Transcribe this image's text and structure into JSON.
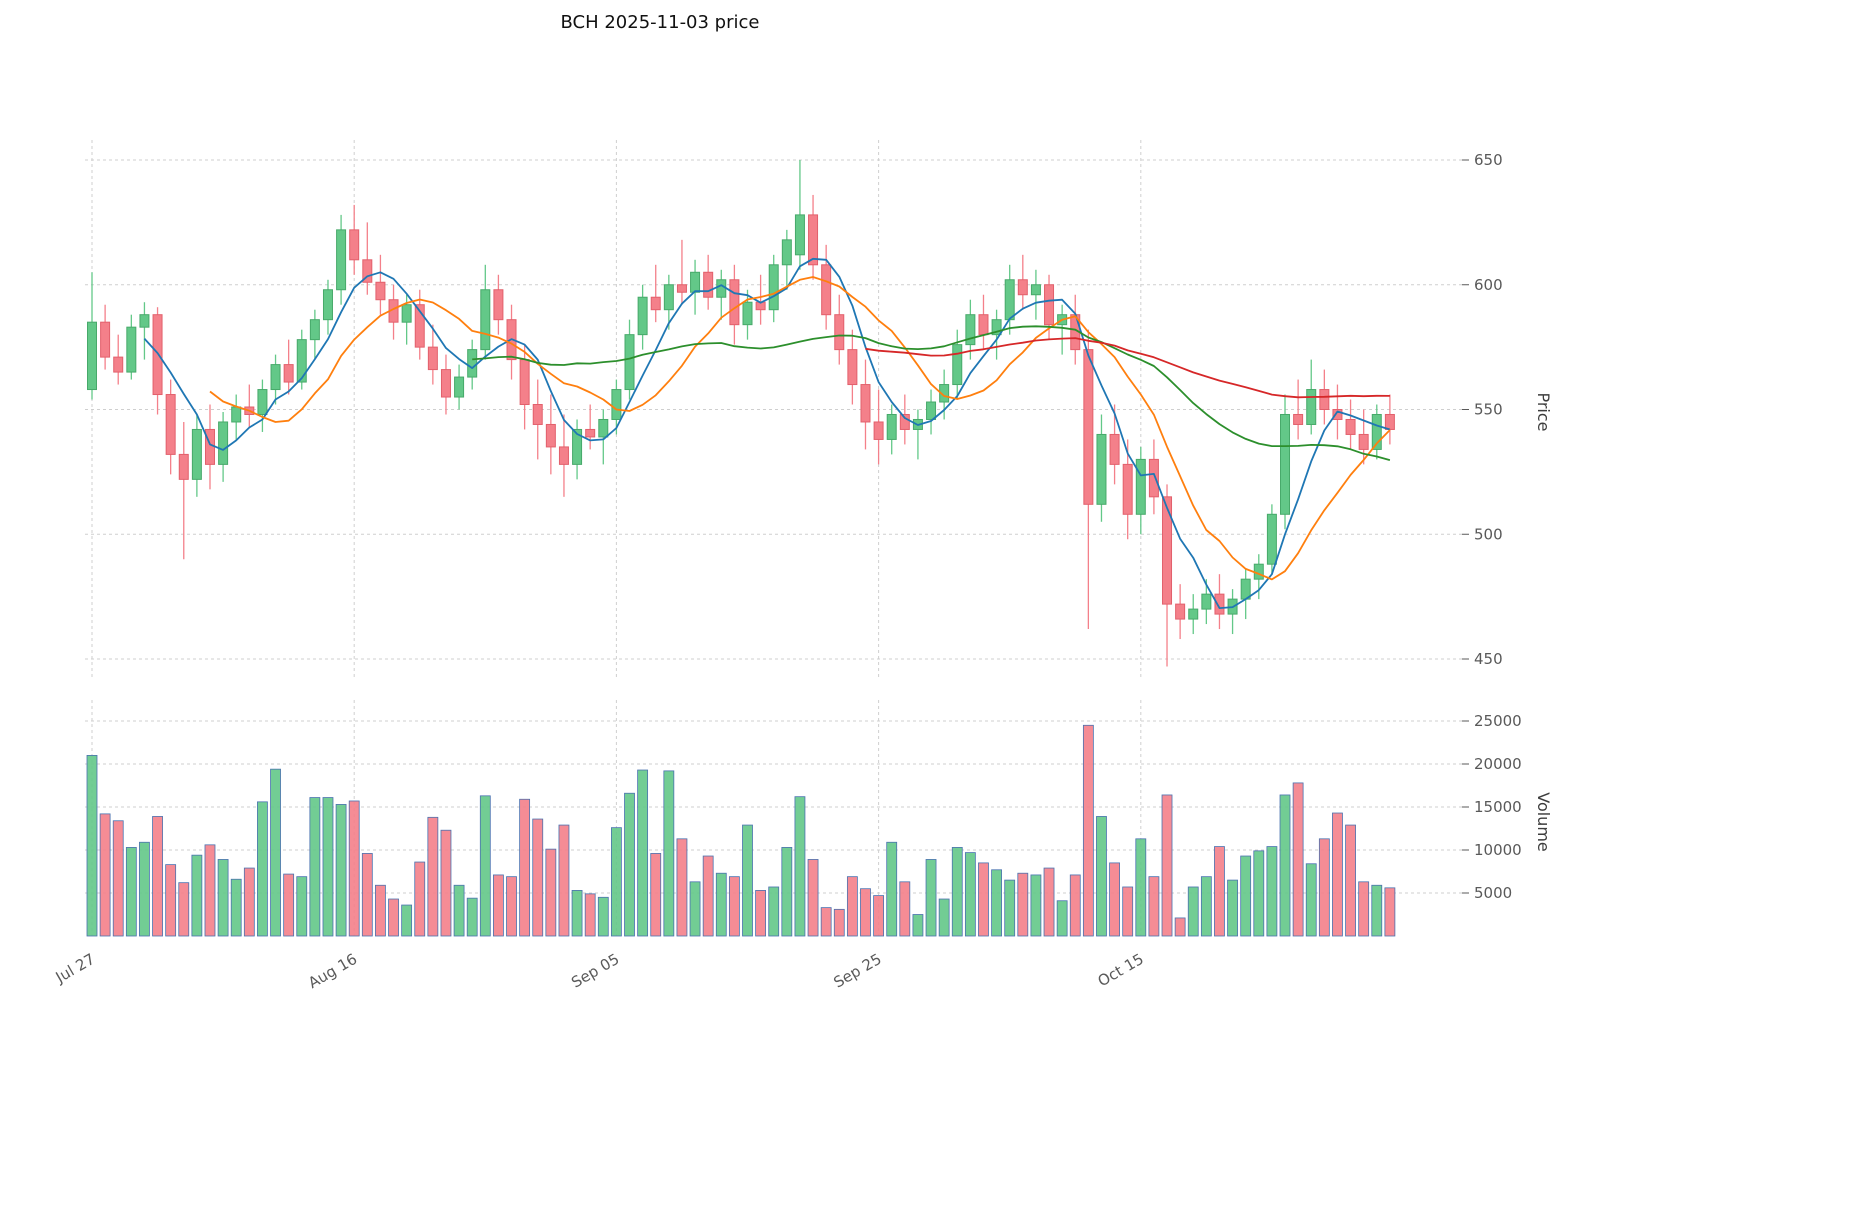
{
  "chart_data": {
    "type": "candlestick_with_volume",
    "title": "BCH  2025-11-03  price",
    "ylabel": "Price",
    "ylabel_volume": "Volume",
    "legend_position": "none",
    "grid": true,
    "x_tick_labels": [
      "Jul 27",
      "Aug 16",
      "Sep 05",
      "Sep 25",
      "Oct 15"
    ],
    "x_tick_indices": [
      0,
      20,
      40,
      60,
      80
    ],
    "price_ticks": [
      450,
      500,
      550,
      600,
      650
    ],
    "price_ylim": [
      442,
      658
    ],
    "volume_ticks": [
      5000,
      10000,
      15000,
      20000,
      25000
    ],
    "volume_ylim": [
      0,
      27400
    ],
    "moving_averages": [
      {
        "name": "MA5",
        "window": 5,
        "color": "#1f77b4"
      },
      {
        "name": "MA10",
        "window": 10,
        "color": "#ff7f0e"
      },
      {
        "name": "MA30",
        "window": 30,
        "color": "#2c8f2c"
      },
      {
        "name": "MA60",
        "window": 60,
        "color": "#d62728"
      }
    ],
    "colors": {
      "up": "#63c888",
      "up_edge": "#47a96a",
      "down": "#f4808a",
      "down_edge": "#e2606c",
      "volume_edge": "#4a72b0",
      "grid": "#cfcfcf",
      "axis_text": "#595959"
    },
    "ohlcv_columns": [
      "date",
      "open",
      "high",
      "low",
      "close",
      "volume"
    ],
    "ohlcv": [
      [
        "2025-07-27",
        558,
        605,
        554,
        585,
        21000
      ],
      [
        "2025-07-28",
        585,
        592,
        566,
        571,
        14200
      ],
      [
        "2025-07-29",
        571,
        580,
        560,
        565,
        13400
      ],
      [
        "2025-07-30",
        565,
        588,
        562,
        583,
        10300
      ],
      [
        "2025-07-31",
        583,
        593,
        570,
        588,
        10900
      ],
      [
        "2025-08-01",
        588,
        591,
        548,
        556,
        13900
      ],
      [
        "2025-08-02",
        556,
        562,
        524,
        532,
        8300
      ],
      [
        "2025-08-03",
        532,
        545,
        490,
        522,
        6200
      ],
      [
        "2025-08-04",
        522,
        548,
        515,
        542,
        9400
      ],
      [
        "2025-08-05",
        542,
        552,
        518,
        528,
        10600
      ],
      [
        "2025-08-06",
        528,
        549,
        521,
        545,
        8900
      ],
      [
        "2025-08-07",
        545,
        556,
        538,
        551,
        6600
      ],
      [
        "2025-08-08",
        551,
        560,
        543,
        548,
        7900
      ],
      [
        "2025-08-09",
        548,
        562,
        541,
        558,
        15600
      ],
      [
        "2025-08-10",
        558,
        572,
        552,
        568,
        19400
      ],
      [
        "2025-08-11",
        568,
        578,
        556,
        561,
        7200
      ],
      [
        "2025-08-12",
        561,
        582,
        558,
        578,
        6900
      ],
      [
        "2025-08-13",
        578,
        590,
        570,
        586,
        16100
      ],
      [
        "2025-08-14",
        586,
        602,
        580,
        598,
        16100
      ],
      [
        "2025-08-15",
        598,
        628,
        592,
        622,
        15300
      ],
      [
        "2025-08-16",
        622,
        632,
        604,
        610,
        15700
      ],
      [
        "2025-08-17",
        610,
        625,
        596,
        601,
        9600
      ],
      [
        "2025-08-18",
        601,
        612,
        588,
        594,
        5900
      ],
      [
        "2025-08-19",
        594,
        600,
        578,
        585,
        4300
      ],
      [
        "2025-08-20",
        585,
        596,
        576,
        592,
        3600
      ],
      [
        "2025-08-21",
        592,
        598,
        570,
        575,
        8600
      ],
      [
        "2025-08-22",
        575,
        584,
        560,
        566,
        13800
      ],
      [
        "2025-08-23",
        566,
        572,
        548,
        555,
        12300
      ],
      [
        "2025-08-24",
        555,
        568,
        550,
        563,
        5900
      ],
      [
        "2025-08-25",
        563,
        578,
        558,
        574,
        4400
      ],
      [
        "2025-08-26",
        574,
        608,
        570,
        598,
        16300
      ],
      [
        "2025-08-27",
        598,
        604,
        580,
        586,
        7100
      ],
      [
        "2025-08-28",
        586,
        592,
        562,
        570,
        6900
      ],
      [
        "2025-08-29",
        570,
        576,
        542,
        552,
        15900
      ],
      [
        "2025-08-30",
        552,
        562,
        530,
        544,
        13600
      ],
      [
        "2025-08-31",
        544,
        556,
        524,
        535,
        10100
      ],
      [
        "2025-09-01",
        535,
        548,
        515,
        528,
        12900
      ],
      [
        "2025-09-02",
        528,
        546,
        522,
        542,
        5300
      ],
      [
        "2025-09-03",
        542,
        552,
        534,
        539,
        4900
      ],
      [
        "2025-09-04",
        539,
        550,
        528,
        546,
        4500
      ],
      [
        "2025-09-05",
        546,
        562,
        540,
        558,
        12600
      ],
      [
        "2025-09-06",
        558,
        586,
        554,
        580,
        16600
      ],
      [
        "2025-09-07",
        580,
        600,
        574,
        595,
        19300
      ],
      [
        "2025-09-08",
        595,
        608,
        585,
        590,
        9600
      ],
      [
        "2025-09-09",
        590,
        604,
        582,
        600,
        19200
      ],
      [
        "2025-09-10",
        600,
        618,
        592,
        597,
        11300
      ],
      [
        "2025-09-11",
        597,
        610,
        588,
        605,
        6300
      ],
      [
        "2025-09-12",
        605,
        612,
        590,
        595,
        9300
      ],
      [
        "2025-09-13",
        595,
        606,
        586,
        602,
        7300
      ],
      [
        "2025-09-14",
        602,
        608,
        576,
        584,
        6900
      ],
      [
        "2025-09-15",
        584,
        598,
        578,
        593,
        12900
      ],
      [
        "2025-09-16",
        593,
        604,
        584,
        590,
        5300
      ],
      [
        "2025-09-17",
        590,
        612,
        585,
        608,
        5700
      ],
      [
        "2025-09-18",
        608,
        622,
        598,
        618,
        10300
      ],
      [
        "2025-09-19",
        612,
        650,
        606,
        628,
        16200
      ],
      [
        "2025-09-20",
        628,
        636,
        602,
        608,
        8900
      ],
      [
        "2025-09-21",
        608,
        616,
        582,
        588,
        3300
      ],
      [
        "2025-09-22",
        588,
        596,
        568,
        574,
        3100
      ],
      [
        "2025-09-23",
        574,
        582,
        552,
        560,
        6900
      ],
      [
        "2025-09-24",
        560,
        570,
        534,
        545,
        5500
      ],
      [
        "2025-09-25",
        545,
        558,
        528,
        538,
        4700
      ],
      [
        "2025-09-26",
        538,
        552,
        532,
        548,
        10900
      ],
      [
        "2025-09-27",
        548,
        556,
        536,
        542,
        6300
      ],
      [
        "2025-09-28",
        542,
        550,
        530,
        546,
        2500
      ],
      [
        "2025-09-29",
        546,
        558,
        540,
        553,
        8900
      ],
      [
        "2025-09-30",
        553,
        566,
        546,
        560,
        4300
      ],
      [
        "2025-10-01",
        560,
        582,
        554,
        576,
        10300
      ],
      [
        "2025-10-02",
        576,
        594,
        570,
        588,
        9700
      ],
      [
        "2025-10-03",
        588,
        596,
        574,
        580,
        8500
      ],
      [
        "2025-10-04",
        580,
        590,
        570,
        586,
        7700
      ],
      [
        "2025-10-05",
        586,
        608,
        580,
        602,
        6500
      ],
      [
        "2025-10-06",
        602,
        612,
        590,
        596,
        7300
      ],
      [
        "2025-10-07",
        596,
        606,
        586,
        600,
        7100
      ],
      [
        "2025-10-08",
        600,
        604,
        578,
        584,
        7900
      ],
      [
        "2025-10-09",
        584,
        592,
        572,
        588,
        4100
      ],
      [
        "2025-10-10",
        588,
        596,
        568,
        574,
        7100
      ],
      [
        "2025-10-11",
        574,
        582,
        462,
        512,
        24500
      ],
      [
        "2025-10-12",
        512,
        548,
        505,
        540,
        13900
      ],
      [
        "2025-10-13",
        540,
        552,
        520,
        528,
        8500
      ],
      [
        "2025-10-14",
        528,
        538,
        498,
        508,
        5700
      ],
      [
        "2025-10-15",
        508,
        535,
        500,
        530,
        11300
      ],
      [
        "2025-10-16",
        530,
        538,
        508,
        515,
        6900
      ],
      [
        "2025-10-17",
        515,
        520,
        447,
        472,
        16400
      ],
      [
        "2025-10-18",
        472,
        480,
        458,
        466,
        2100
      ],
      [
        "2025-10-19",
        466,
        476,
        460,
        470,
        5700
      ],
      [
        "2025-10-20",
        470,
        482,
        464,
        476,
        6900
      ],
      [
        "2025-10-21",
        476,
        484,
        462,
        468,
        10400
      ],
      [
        "2025-10-22",
        468,
        478,
        460,
        474,
        6500
      ],
      [
        "2025-10-23",
        474,
        486,
        466,
        482,
        9300
      ],
      [
        "2025-10-24",
        482,
        492,
        474,
        488,
        9900
      ],
      [
        "2025-10-25",
        488,
        512,
        484,
        508,
        10400
      ],
      [
        "2025-10-26",
        508,
        556,
        502,
        548,
        16400
      ],
      [
        "2025-10-27",
        548,
        562,
        538,
        544,
        17800
      ],
      [
        "2025-10-28",
        544,
        570,
        540,
        558,
        8400
      ],
      [
        "2025-10-29",
        558,
        566,
        544,
        550,
        11300
      ],
      [
        "2025-10-30",
        550,
        560,
        538,
        546,
        14300
      ],
      [
        "2025-10-31",
        546,
        554,
        534,
        540,
        12900
      ],
      [
        "2025-11-01",
        540,
        550,
        528,
        534,
        6300
      ],
      [
        "2025-11-02",
        534,
        552,
        530,
        548,
        5900
      ],
      [
        "2025-11-03",
        548,
        556,
        536,
        542,
        5600
      ]
    ]
  }
}
